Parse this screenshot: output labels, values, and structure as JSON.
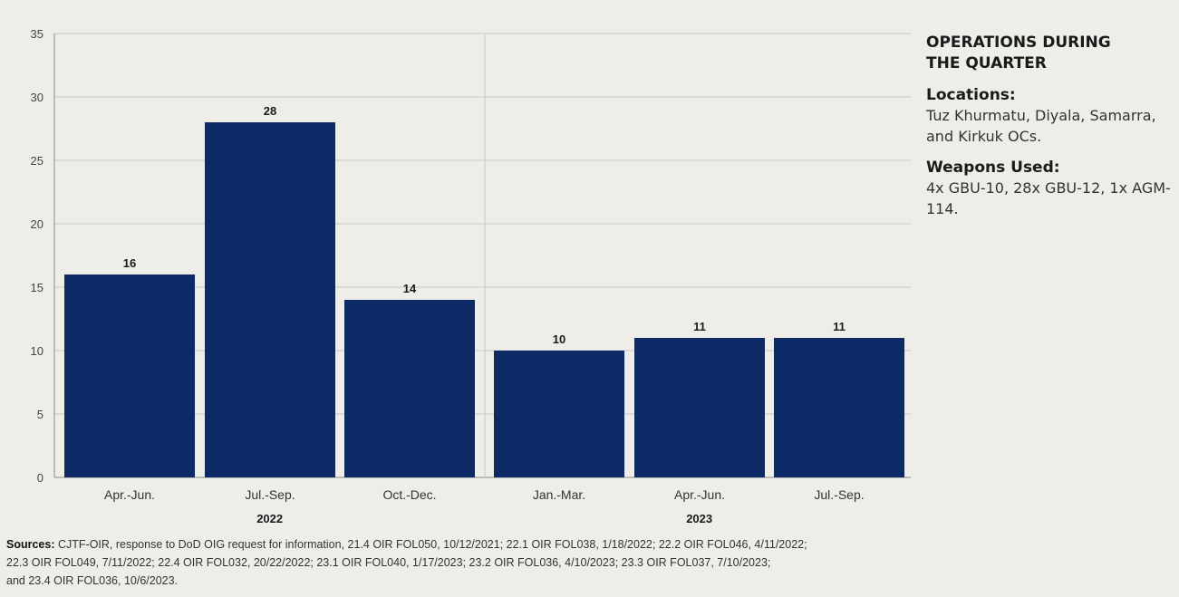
{
  "sidebar": {
    "title": "OPERATIONS DURING THE QUARTER",
    "locations_heading": "Locations:",
    "locations_text": "Tuz Khurmatu, Diyala, Samarra, and Kirkuk OCs.",
    "weapons_heading": "Weapons Used:",
    "weapons_text": "4x GBU-10, 28x GBU-12, 1x AGM-114."
  },
  "sources": {
    "label": "Sources:",
    "line1": "CJTF-OIR, response to DoD OIG request for information, 21.4 OIR FOL050, 10/12/2021; 22.1 OIR FOL038, 1/18/2022; 22.2 OIR FOL046, 4/11/2022;",
    "line2": "22.3 OIR FOL049, 7/11/2022;  22.4 OIR FOL032, 20/22/2022;  23.1 OIR FOL040, 1/17/2023; 23.2 OIR FOL036, 4/10/2023;  23.3 OIR FOL037, 7/10/2023;",
    "line3": "and 23.4 OIR FOL036, 10/6/2023."
  },
  "colors": {
    "bar": "#0b2a66",
    "grid": "#c9c7c2",
    "background": "#efede8"
  },
  "chart_data": {
    "type": "bar",
    "categories": [
      "Apr.-Jun.",
      "Jul.-Sep.",
      "Oct.-Dec.",
      "Jan.-Mar.",
      "Apr.-Jun.",
      "Jul.-Sep."
    ],
    "values": [
      16,
      28,
      14,
      10,
      11,
      11
    ],
    "data_labels": [
      "16",
      "28",
      "14",
      "10",
      "11",
      "11"
    ],
    "groups": [
      {
        "label": "2022",
        "categories": [
          0,
          1,
          2
        ]
      },
      {
        "label": "2023",
        "categories": [
          3,
          4,
          5
        ]
      }
    ],
    "yticks": [
      0,
      5,
      10,
      15,
      20,
      25,
      30,
      35
    ],
    "ylim": [
      0,
      35
    ],
    "grid": true,
    "title": "",
    "xlabel": "",
    "ylabel": ""
  }
}
